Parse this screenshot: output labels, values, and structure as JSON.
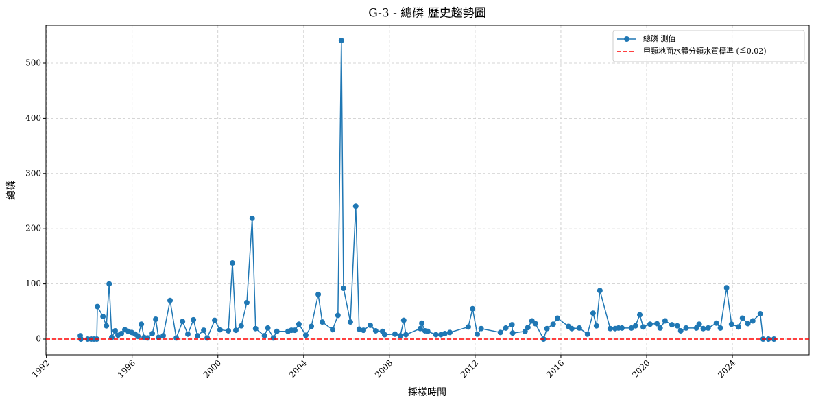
{
  "chart_data": {
    "type": "line",
    "title": "G-3 - 總磷 歷史趨勢圖",
    "xlabel": "採樣時間",
    "ylabel": "總磷",
    "x": [
      1993.58,
      1993.61,
      1993.93,
      1994.09,
      1994.22,
      1994.35,
      1994.38,
      1994.64,
      1994.8,
      1994.93,
      1995.05,
      1995.21,
      1995.34,
      1995.5,
      1995.66,
      1995.82,
      1995.98,
      1996.14,
      1996.27,
      1996.43,
      1996.56,
      1996.72,
      1996.94,
      1997.1,
      1997.23,
      1997.45,
      1997.77,
      1998.06,
      1998.35,
      1998.6,
      1998.86,
      1999.05,
      1999.34,
      1999.5,
      1999.85,
      2000.1,
      2000.49,
      2000.68,
      2000.84,
      2001.09,
      2001.35,
      2001.6,
      2001.76,
      2002.17,
      2002.33,
      2002.59,
      2002.75,
      2003.27,
      2003.43,
      2003.59,
      2003.78,
      2004.1,
      2004.36,
      2004.68,
      2004.87,
      2005.35,
      2005.6,
      2005.76,
      2005.86,
      2006.18,
      2006.43,
      2006.59,
      2006.79,
      2007.11,
      2007.36,
      2007.68,
      2007.78,
      2008.26,
      2008.51,
      2008.67,
      2008.77,
      2009.44,
      2009.51,
      2009.66,
      2009.79,
      2010.17,
      2010.4,
      2010.59,
      2010.82,
      2011.68,
      2011.88,
      2012.1,
      2012.28,
      2013.18,
      2013.43,
      2013.72,
      2013.75,
      2014.33,
      2014.46,
      2014.65,
      2014.81,
      2015.19,
      2015.35,
      2015.64,
      2015.84,
      2016.35,
      2016.51,
      2016.86,
      2017.24,
      2017.5,
      2017.66,
      2017.82,
      2018.3,
      2018.53,
      2018.69,
      2018.85,
      2019.29,
      2019.48,
      2019.68,
      2019.84,
      2020.16,
      2020.48,
      2020.63,
      2020.86,
      2021.18,
      2021.43,
      2021.59,
      2021.84,
      2022.32,
      2022.45,
      2022.64,
      2022.87,
      2023.25,
      2023.44,
      2023.73,
      2023.96,
      2024.28,
      2024.47,
      2024.72,
      2024.95,
      2025.3,
      2025.43,
      2025.68,
      2025.94
    ],
    "series": [
      {
        "name": "總磷 測值",
        "color": "#1f77b4",
        "values": [
          6,
          0,
          0,
          0,
          0,
          0,
          59,
          41,
          24,
          100,
          3,
          15,
          7,
          10,
          17,
          14,
          12,
          9,
          5,
          27,
          3,
          2,
          10,
          36,
          3,
          6,
          70,
          2,
          32,
          9,
          35,
          6,
          16,
          2,
          34,
          17,
          15,
          138,
          16,
          24,
          66,
          219,
          19,
          6,
          20,
          2,
          14,
          14,
          16,
          16,
          27,
          7,
          23,
          81,
          31,
          17,
          43,
          541,
          92,
          31,
          241,
          18,
          16,
          25,
          15,
          14,
          8,
          9,
          6,
          34,
          8,
          19,
          29,
          15,
          14,
          8,
          8,
          10,
          12,
          22,
          55,
          9,
          19,
          12,
          20,
          26,
          11,
          14,
          21,
          33,
          28,
          0,
          19,
          27,
          38,
          23,
          19,
          20,
          9,
          47,
          24,
          88,
          19,
          19,
          20,
          20,
          20,
          24,
          44,
          22,
          27,
          28,
          20,
          33,
          26,
          24,
          15,
          20,
          20,
          27,
          19,
          20,
          29,
          20,
          93,
          27,
          22,
          38,
          28,
          33,
          46,
          0,
          0,
          0
        ]
      }
    ],
    "threshold": {
      "name": "甲類地面水體分類水質標準 (≦0.02)",
      "value": 0.02,
      "color": "#ff0000"
    },
    "xlim": [
      1991.98,
      2027.58
    ],
    "xticks": [
      1992,
      1996,
      2000,
      2004,
      2008,
      2012,
      2016,
      2020,
      2024
    ],
    "ylim": [
      -28.6,
      568.4
    ],
    "yticks": [
      0,
      100,
      200,
      300,
      400,
      500
    ],
    "grid": true,
    "legend": "upper right"
  }
}
